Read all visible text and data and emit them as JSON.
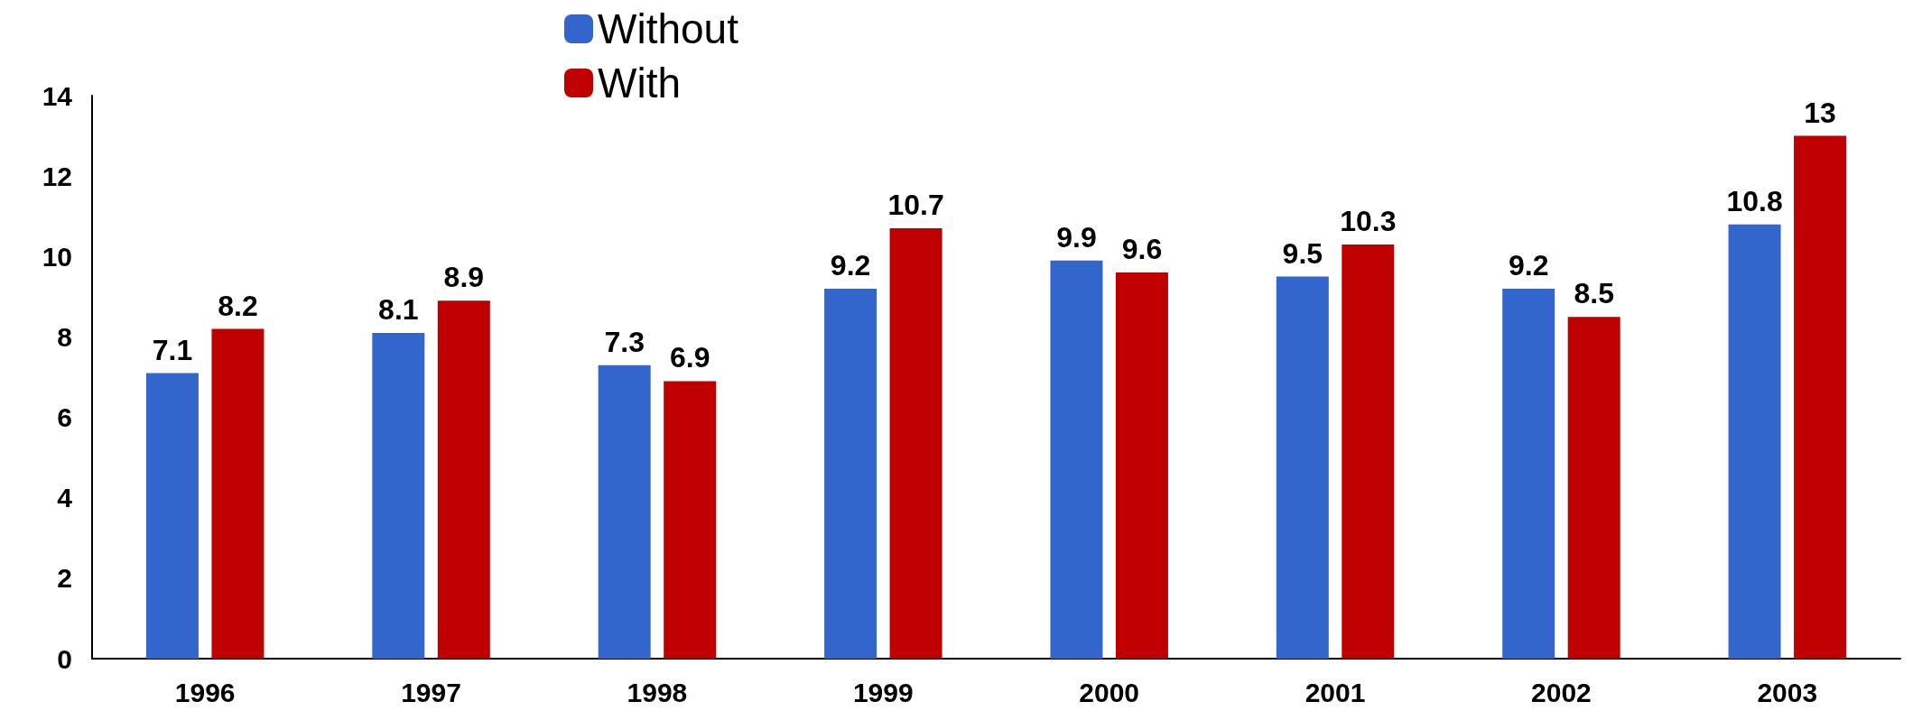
{
  "chart_data": {
    "type": "bar",
    "categories": [
      "1996",
      "1997",
      "1998",
      "1999",
      "2000",
      "2001",
      "2002",
      "2003"
    ],
    "series": [
      {
        "name": "Without",
        "color": "#3366cc",
        "values": [
          7.1,
          8.1,
          7.3,
          9.2,
          9.9,
          9.5,
          9.2,
          10.8
        ]
      },
      {
        "name": "With",
        "color": "#c00000",
        "values": [
          8.2,
          8.9,
          6.9,
          10.7,
          9.6,
          10.3,
          8.5,
          13
        ]
      }
    ],
    "ylim": [
      0,
      14
    ],
    "yticks": [
      0,
      2,
      4,
      6,
      8,
      10,
      12,
      14
    ],
    "data_labels": true,
    "grid": false,
    "legend": "top"
  }
}
